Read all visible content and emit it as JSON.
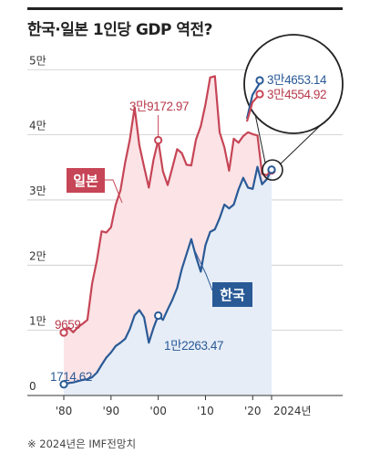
{
  "title": "한국·일본 1인당 GDP 역전?",
  "source_note": "※ 2024년은 IMF전망치",
  "colors": {
    "japan": "#c64556",
    "japan_fill": "#fbe3e6",
    "korea": "#2a5a96",
    "korea_fill": "#e6edf7"
  },
  "chart_data": {
    "type": "area",
    "x_tick_labels": [
      "'80",
      "'90",
      "'00",
      "'10",
      "'20",
      "2024년"
    ],
    "x_ticks": [
      1980,
      1990,
      2000,
      2010,
      2020,
      2024
    ],
    "y_tick_labels": [
      "0",
      "1만",
      "2만",
      "3만",
      "4만",
      "5만"
    ],
    "y_ticks": [
      0,
      10000,
      20000,
      30000,
      40000,
      50000
    ],
    "ylim": [
      0,
      52000
    ],
    "xlim": [
      1978,
      2024
    ],
    "series": [
      {
        "name": "일본",
        "years": [
          1980,
          1981,
          1982,
          1983,
          1984,
          1985,
          1986,
          1987,
          1988,
          1989,
          1990,
          1991,
          1992,
          1993,
          1994,
          1995,
          1996,
          1997,
          1998,
          1999,
          2000,
          2001,
          2002,
          2003,
          2004,
          2005,
          2006,
          2007,
          2008,
          2009,
          2010,
          2011,
          2012,
          2013,
          2014,
          2015,
          2016,
          2017,
          2018,
          2019,
          2020,
          2021,
          2022,
          2023,
          2024
        ],
        "values": [
          9659,
          10400,
          9700,
          10500,
          11000,
          11600,
          17200,
          20700,
          25200,
          25000,
          25800,
          29300,
          31500,
          35800,
          39300,
          44200,
          38400,
          35100,
          31900,
          36200,
          39172.97,
          34400,
          32300,
          35000,
          37800,
          37200,
          35400,
          35300,
          39300,
          41300,
          44700,
          48800,
          49000,
          40400,
          38100,
          34500,
          39400,
          38800,
          39800,
          40400,
          40100,
          39900,
          34000,
          33800,
          34554.92
        ]
      },
      {
        "name": "한국",
        "years": [
          1980,
          1981,
          1982,
          1983,
          1984,
          1985,
          1986,
          1987,
          1988,
          1989,
          1990,
          1991,
          1992,
          1993,
          1994,
          1995,
          1996,
          1997,
          1998,
          1999,
          2000,
          2001,
          2002,
          2003,
          2004,
          2005,
          2006,
          2007,
          2008,
          2009,
          2010,
          2011,
          2012,
          2013,
          2014,
          2015,
          2016,
          2017,
          2018,
          2019,
          2020,
          2021,
          2022,
          2023,
          2024
        ],
        "values": [
          1714.62,
          1900,
          2000,
          2200,
          2400,
          2500,
          2800,
          3500,
          4700,
          5800,
          6600,
          7600,
          8100,
          8700,
          10200,
          12300,
          13100,
          12000,
          8100,
          10400,
          12263.47,
          11600,
          13200,
          14700,
          16500,
          19400,
          21700,
          24000,
          21300,
          19000,
          23100,
          25100,
          25500,
          27200,
          29300,
          28700,
          29300,
          31600,
          33400,
          31900,
          31700,
          35100,
          32400,
          33200,
          34653.14
        ]
      }
    ],
    "annotations": {
      "japan_start": "9659",
      "japan_2000": "3만9172.97",
      "japan_2024": "3만4554.92",
      "korea_start": "1714.62",
      "korea_2000": "1만2263.47",
      "korea_2024": "3만4653.14"
    },
    "legend": {
      "japan_label": "일본",
      "korea_label": "한국"
    }
  }
}
